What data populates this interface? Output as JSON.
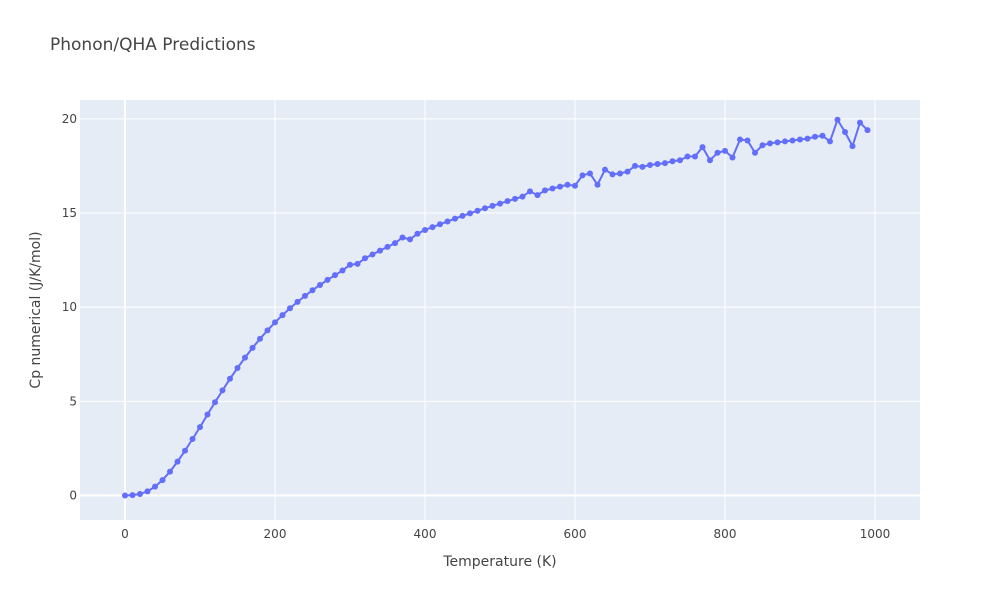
{
  "chart_data": {
    "type": "line",
    "title": "Phonon/QHA Predictions",
    "xlabel": "Temperature (K)",
    "ylabel": "Cp numerical (J/K/mol)",
    "xlim": [
      -60,
      1060
    ],
    "ylim": [
      -1.3,
      21.0
    ],
    "xticks": [
      0,
      200,
      400,
      600,
      800,
      1000
    ],
    "yticks": [
      0,
      5,
      10,
      15,
      20
    ],
    "grid": true,
    "legend": "none",
    "mode": "lines+markers",
    "colors": {
      "background": "#e5ecf6",
      "series": "#636efa",
      "grid": "#ffffff"
    },
    "series": [
      {
        "x": [
          0,
          10,
          20,
          30,
          40,
          50,
          60,
          70,
          80,
          90,
          100,
          110,
          120,
          130,
          140,
          150,
          160,
          170,
          180,
          190,
          200,
          210,
          220,
          230,
          240,
          250,
          260,
          270,
          280,
          290,
          300,
          310,
          320,
          330,
          340,
          350,
          360,
          370,
          380,
          390,
          400,
          410,
          420,
          430,
          440,
          450,
          460,
          470,
          480,
          490,
          500,
          510,
          520,
          530,
          540,
          550,
          560,
          570,
          580,
          590,
          600,
          610,
          620,
          630,
          640,
          650,
          660,
          670,
          680,
          690,
          700,
          710,
          720,
          730,
          740,
          750,
          760,
          770,
          780,
          790,
          800,
          810,
          820,
          830,
          840,
          850,
          860,
          870,
          880,
          890,
          900,
          910,
          920,
          930,
          940,
          950,
          960,
          970,
          980,
          990
        ],
        "y": [
          0.0,
          0.02,
          0.08,
          0.22,
          0.47,
          0.82,
          1.27,
          1.8,
          2.38,
          3.0,
          3.63,
          4.3,
          4.95,
          5.58,
          6.2,
          6.77,
          7.32,
          7.84,
          8.32,
          8.77,
          9.19,
          9.58,
          9.94,
          10.28,
          10.6,
          10.9,
          11.18,
          11.45,
          11.7,
          11.95,
          12.25,
          12.3,
          12.6,
          12.8,
          13.0,
          13.2,
          13.4,
          13.7,
          13.6,
          13.9,
          14.1,
          14.25,
          14.4,
          14.55,
          14.7,
          14.85,
          14.98,
          15.12,
          15.25,
          15.38,
          15.5,
          15.63,
          15.75,
          15.87,
          16.15,
          15.95,
          16.2,
          16.3,
          16.4,
          16.5,
          16.45,
          17.0,
          17.1,
          16.5,
          17.3,
          17.05,
          17.1,
          17.2,
          17.5,
          17.45,
          17.55,
          17.6,
          17.65,
          17.75,
          17.8,
          18.0,
          18.0,
          18.5,
          17.8,
          18.2,
          18.3,
          17.95,
          18.9,
          18.85,
          18.2,
          18.6,
          18.7,
          18.75,
          18.8,
          18.85,
          18.9,
          18.95,
          19.05,
          19.1,
          18.8,
          19.95,
          19.3,
          18.55,
          19.8,
          19.4
        ]
      }
    ]
  }
}
